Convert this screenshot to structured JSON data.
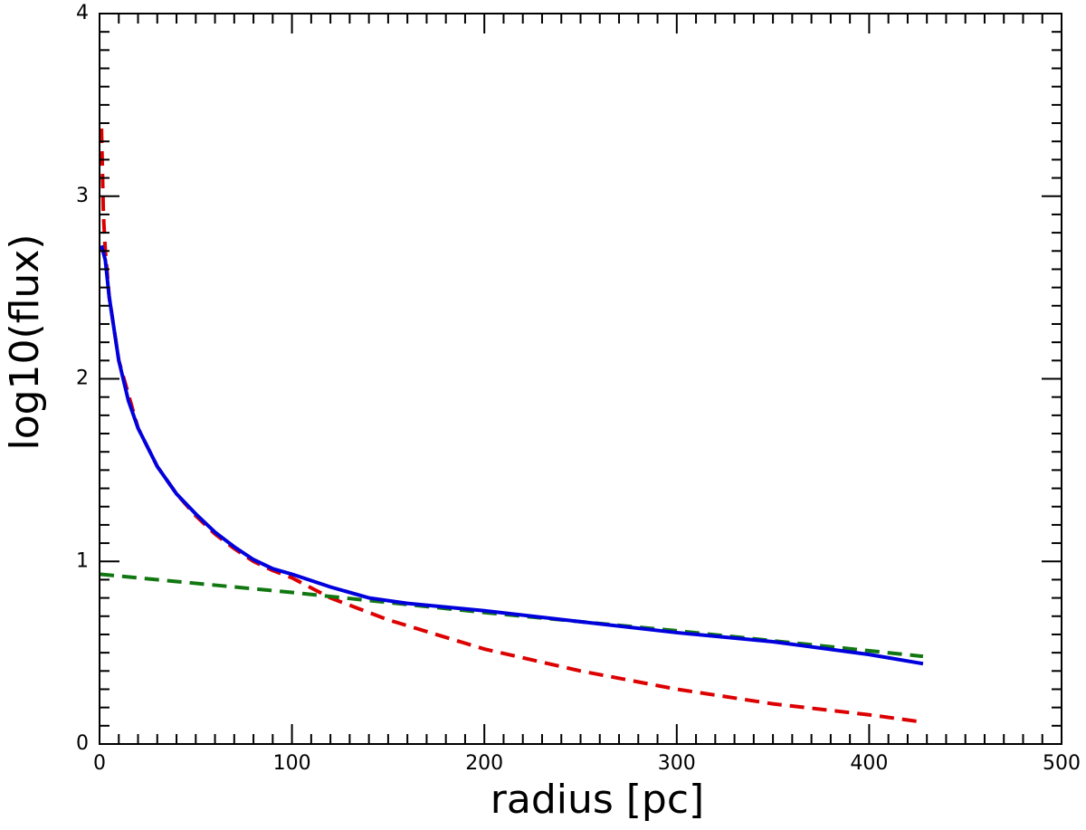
{
  "chart_data": {
    "type": "line",
    "xlabel": "radius [pc]",
    "ylabel": "log10(flux)",
    "xlim": [
      0,
      500
    ],
    "ylim": [
      0,
      4
    ],
    "xticks": [
      0,
      100,
      200,
      300,
      400,
      500
    ],
    "yticks": [
      0,
      1,
      2,
      3,
      4
    ],
    "xminor_ticks": [
      10,
      20,
      30,
      40,
      50,
      60,
      70,
      80,
      90,
      110,
      120,
      130,
      140,
      150,
      160,
      170,
      180,
      190,
      210,
      220,
      230,
      240,
      250,
      260,
      270,
      280,
      290,
      310,
      320,
      330,
      340,
      350,
      360,
      370,
      380,
      390,
      410,
      420,
      430,
      440,
      450,
      460,
      470,
      480,
      490
    ],
    "yminor_ticks": [
      0.1,
      0.2,
      0.3,
      0.4,
      0.5,
      0.6,
      0.7,
      0.8,
      0.9,
      1.1,
      1.2,
      1.3,
      1.4,
      1.5,
      1.6,
      1.7,
      1.8,
      1.9,
      2.1,
      2.2,
      2.3,
      2.4,
      2.5,
      2.6,
      2.7,
      2.8,
      2.9,
      3.1,
      3.2,
      3.3,
      3.4,
      3.5,
      3.6,
      3.7,
      3.8,
      3.9
    ],
    "series": [
      {
        "color": "#dd0000",
        "linestyle": "dashed",
        "x": [
          1,
          2,
          3,
          5,
          10,
          20,
          30,
          40,
          50,
          60,
          70,
          80,
          90,
          100,
          120,
          150,
          200,
          250,
          300,
          350,
          400,
          428
        ],
        "values": [
          3.37,
          2.9,
          2.7,
          2.45,
          2.1,
          1.73,
          1.52,
          1.37,
          1.25,
          1.15,
          1.07,
          1.0,
          0.95,
          0.91,
          0.8,
          0.68,
          0.52,
          0.4,
          0.3,
          0.22,
          0.16,
          0.12
        ]
      },
      {
        "color": "#117711",
        "linestyle": "dashed",
        "x": [
          0,
          100,
          200,
          300,
          428
        ],
        "values": [
          0.93,
          0.83,
          0.72,
          0.62,
          0.48
        ]
      },
      {
        "color": "#0000dd",
        "linestyle": "solid",
        "x": [
          1,
          3,
          5,
          10,
          15,
          20,
          30,
          40,
          50,
          60,
          70,
          80,
          90,
          100,
          120,
          140,
          160,
          200,
          250,
          300,
          350,
          400,
          428
        ],
        "values": [
          2.73,
          2.65,
          2.45,
          2.1,
          1.88,
          1.73,
          1.52,
          1.37,
          1.26,
          1.16,
          1.08,
          1.01,
          0.96,
          0.93,
          0.86,
          0.8,
          0.77,
          0.73,
          0.67,
          0.61,
          0.56,
          0.49,
          0.44
        ]
      }
    ]
  }
}
